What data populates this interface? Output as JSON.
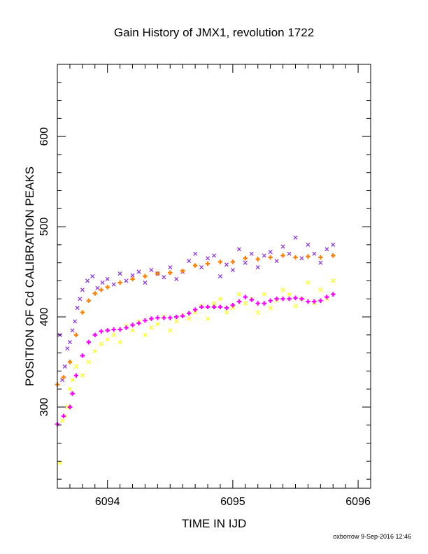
{
  "chart_data": {
    "type": "scatter",
    "title": "Gain History of JMX1, revolution 1722",
    "xlabel": "TIME IN IJD",
    "ylabel": "POSITION OF Cd CALIBRATION PEAKS",
    "xlim": [
      6093.6,
      6096.1
    ],
    "ylim": [
      210,
      680
    ],
    "x_ticks": [
      6094,
      6095,
      6096
    ],
    "y_ticks": [
      300,
      400,
      500,
      600
    ],
    "x_minor_step": 0.1,
    "y_minor_step": 20,
    "grid": false,
    "footer": "oxborrow  9-Sep-2016 12:46",
    "series": [
      {
        "color": "#8a2be2",
        "marker": "x",
        "values_desc": "scatter points around the upper fit",
        "x": [
          6093.62,
          6093.64,
          6093.66,
          6093.68,
          6093.7,
          6093.72,
          6093.74,
          6093.76,
          6093.78,
          6093.8,
          6093.84,
          6093.88,
          6093.92,
          6093.96,
          6094.0,
          6094.05,
          6094.1,
          6094.15,
          6094.2,
          6094.25,
          6094.3,
          6094.35,
          6094.4,
          6094.45,
          6094.5,
          6094.55,
          6094.6,
          6094.65,
          6094.7,
          6094.75,
          6094.8,
          6094.85,
          6094.9,
          6094.95,
          6095.0,
          6095.05,
          6095.1,
          6095.15,
          6095.2,
          6095.25,
          6095.3,
          6095.35,
          6095.4,
          6095.45,
          6095.5,
          6095.55,
          6095.6,
          6095.65,
          6095.7,
          6095.75,
          6095.8
        ],
        "y": [
          380,
          330,
          345,
          365,
          372,
          385,
          395,
          410,
          420,
          430,
          440,
          445,
          432,
          438,
          442,
          436,
          448,
          440,
          446,
          450,
          438,
          452,
          448,
          444,
          455,
          442,
          450,
          462,
          470,
          455,
          465,
          468,
          445,
          458,
          452,
          475,
          460,
          470,
          455,
          468,
          472,
          462,
          478,
          470,
          488,
          465,
          480,
          470,
          460,
          475,
          480
        ]
      },
      {
        "color": "#ff7f00",
        "marker": "+",
        "values_desc": "upper smooth fit",
        "x": [
          6093.6,
          6093.65,
          6093.7,
          6093.75,
          6093.8,
          6093.85,
          6093.9,
          6093.95,
          6094.0,
          6094.1,
          6094.2,
          6094.3,
          6094.4,
          6094.5,
          6094.6,
          6094.7,
          6094.8,
          6094.9,
          6095.0,
          6095.1,
          6095.2,
          6095.3,
          6095.4,
          6095.5,
          6095.6,
          6095.7,
          6095.8
        ],
        "y": [
          325,
          333,
          350,
          380,
          405,
          418,
          426,
          430,
          433,
          438,
          442,
          445,
          448,
          449,
          451,
          457,
          459,
          461,
          461,
          465,
          464,
          466,
          468,
          466,
          467,
          466,
          468
        ]
      },
      {
        "color": "#ffff00",
        "marker": "x",
        "values_desc": "scatter points around the lower fit",
        "x": [
          6093.62,
          6093.64,
          6093.66,
          6093.68,
          6093.7,
          6093.72,
          6093.75,
          6093.8,
          6093.85,
          6093.9,
          6093.95,
          6094.0,
          6094.05,
          6094.1,
          6094.15,
          6094.2,
          6094.25,
          6094.3,
          6094.35,
          6094.4,
          6094.45,
          6094.5,
          6094.55,
          6094.6,
          6094.65,
          6094.7,
          6094.75,
          6094.8,
          6094.85,
          6094.9,
          6094.95,
          6095.0,
          6095.05,
          6095.1,
          6095.15,
          6095.2,
          6095.25,
          6095.3,
          6095.35,
          6095.4,
          6095.45,
          6095.5,
          6095.55,
          6095.6,
          6095.65,
          6095.7,
          6095.75,
          6095.8
        ],
        "y": [
          238,
          285,
          290,
          300,
          320,
          330,
          345,
          335,
          350,
          362,
          370,
          375,
          380,
          372,
          390,
          385,
          395,
          380,
          388,
          392,
          400,
          385,
          395,
          402,
          398,
          405,
          412,
          398,
          415,
          420,
          405,
          410,
          425,
          415,
          420,
          405,
          425,
          410,
          418,
          430,
          425,
          412,
          420,
          438,
          415,
          430,
          420,
          440
        ]
      },
      {
        "color": "#ff00ff",
        "marker": "+",
        "values_desc": "lower smooth fit",
        "x": [
          6093.6,
          6093.65,
          6093.7,
          6093.72,
          6093.75,
          6093.8,
          6093.85,
          6093.9,
          6093.95,
          6094.0,
          6094.05,
          6094.1,
          6094.15,
          6094.2,
          6094.25,
          6094.3,
          6094.35,
          6094.4,
          6094.45,
          6094.5,
          6094.55,
          6094.6,
          6094.65,
          6094.7,
          6094.75,
          6094.8,
          6094.85,
          6094.9,
          6094.95,
          6095.0,
          6095.05,
          6095.1,
          6095.15,
          6095.2,
          6095.25,
          6095.3,
          6095.35,
          6095.4,
          6095.45,
          6095.5,
          6095.55,
          6095.6,
          6095.65,
          6095.7,
          6095.75,
          6095.8
        ],
        "y": [
          281,
          290,
          300,
          315,
          335,
          357,
          372,
          380,
          384,
          385,
          386,
          386,
          388,
          391,
          393,
          396,
          398,
          399,
          399,
          399,
          400,
          401,
          404,
          408,
          411,
          411,
          411,
          411,
          410,
          413,
          417,
          422,
          419,
          415,
          415,
          418,
          420,
          420,
          420,
          421,
          420,
          417,
          417,
          418,
          422,
          425
        ]
      }
    ]
  }
}
